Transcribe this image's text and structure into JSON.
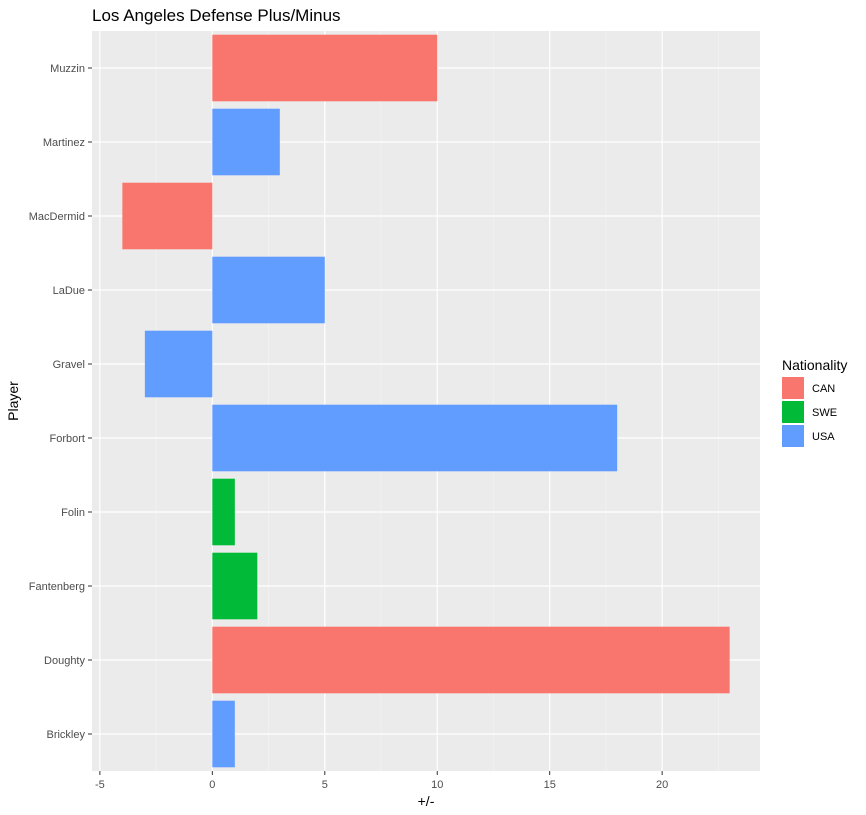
{
  "chart_data": {
    "type": "bar",
    "orientation": "horizontal",
    "title": "Los Angeles Defense Plus/Minus",
    "xlabel": "+/-",
    "ylabel": "Player",
    "xlim": [
      -5.35,
      24.35
    ],
    "x_ticks": [
      -5,
      0,
      5,
      10,
      15,
      20
    ],
    "x_tick_labels": [
      "-5",
      "0",
      "5",
      "10",
      "15",
      "20"
    ],
    "categories": [
      "Brickley",
      "Doughty",
      "Fantenberg",
      "Folin",
      "Forbort",
      "Gravel",
      "LaDue",
      "MacDermid",
      "Martinez",
      "Muzzin"
    ],
    "values": [
      1,
      23,
      2,
      1,
      18,
      -3,
      5,
      -4,
      3,
      10
    ],
    "groups": [
      "USA",
      "CAN",
      "SWE",
      "SWE",
      "USA",
      "USA",
      "USA",
      "CAN",
      "USA",
      "CAN"
    ],
    "legend": {
      "title": "Nationality",
      "position": "right",
      "entries": [
        {
          "label": "CAN",
          "color": "#F8766D"
        },
        {
          "label": "SWE",
          "color": "#00BA38"
        },
        {
          "label": "USA",
          "color": "#619CFF"
        }
      ]
    },
    "grid": true,
    "colors": {
      "panel": "#EBEBEB",
      "grid_major": "#FFFFFF",
      "grid_minor": "#F5F5F5",
      "tick_text": "#4D4D4D",
      "tick_mark": "#333333"
    }
  }
}
